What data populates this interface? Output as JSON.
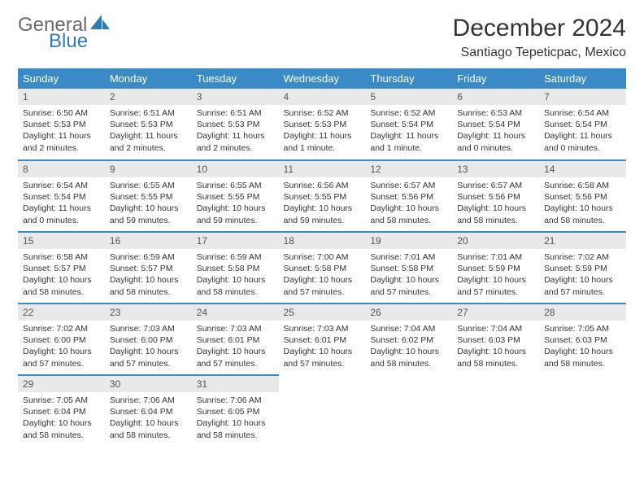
{
  "logo": {
    "word1": "General",
    "word2": "Blue",
    "shape_color": "#2f7ab8",
    "text_gray": "#6a6a6a"
  },
  "title": "December 2024",
  "subtitle": "Santiago Tepeticpac, Mexico",
  "colors": {
    "header_bg": "#3a8ac6",
    "header_text": "#ffffff",
    "daynum_bg": "#e9e9e9",
    "row_divider": "#3a8ac6",
    "body_text": "#333333"
  },
  "weekdays": [
    "Sunday",
    "Monday",
    "Tuesday",
    "Wednesday",
    "Thursday",
    "Friday",
    "Saturday"
  ],
  "days": [
    {
      "n": "1",
      "sunrise": "Sunrise: 6:50 AM",
      "sunset": "Sunset: 5:53 PM",
      "day1": "Daylight: 11 hours",
      "day2": "and 2 minutes."
    },
    {
      "n": "2",
      "sunrise": "Sunrise: 6:51 AM",
      "sunset": "Sunset: 5:53 PM",
      "day1": "Daylight: 11 hours",
      "day2": "and 2 minutes."
    },
    {
      "n": "3",
      "sunrise": "Sunrise: 6:51 AM",
      "sunset": "Sunset: 5:53 PM",
      "day1": "Daylight: 11 hours",
      "day2": "and 2 minutes."
    },
    {
      "n": "4",
      "sunrise": "Sunrise: 6:52 AM",
      "sunset": "Sunset: 5:53 PM",
      "day1": "Daylight: 11 hours",
      "day2": "and 1 minute."
    },
    {
      "n": "5",
      "sunrise": "Sunrise: 6:52 AM",
      "sunset": "Sunset: 5:54 PM",
      "day1": "Daylight: 11 hours",
      "day2": "and 1 minute."
    },
    {
      "n": "6",
      "sunrise": "Sunrise: 6:53 AM",
      "sunset": "Sunset: 5:54 PM",
      "day1": "Daylight: 11 hours",
      "day2": "and 0 minutes."
    },
    {
      "n": "7",
      "sunrise": "Sunrise: 6:54 AM",
      "sunset": "Sunset: 5:54 PM",
      "day1": "Daylight: 11 hours",
      "day2": "and 0 minutes."
    },
    {
      "n": "8",
      "sunrise": "Sunrise: 6:54 AM",
      "sunset": "Sunset: 5:54 PM",
      "day1": "Daylight: 11 hours",
      "day2": "and 0 minutes."
    },
    {
      "n": "9",
      "sunrise": "Sunrise: 6:55 AM",
      "sunset": "Sunset: 5:55 PM",
      "day1": "Daylight: 10 hours",
      "day2": "and 59 minutes."
    },
    {
      "n": "10",
      "sunrise": "Sunrise: 6:55 AM",
      "sunset": "Sunset: 5:55 PM",
      "day1": "Daylight: 10 hours",
      "day2": "and 59 minutes."
    },
    {
      "n": "11",
      "sunrise": "Sunrise: 6:56 AM",
      "sunset": "Sunset: 5:55 PM",
      "day1": "Daylight: 10 hours",
      "day2": "and 59 minutes."
    },
    {
      "n": "12",
      "sunrise": "Sunrise: 6:57 AM",
      "sunset": "Sunset: 5:56 PM",
      "day1": "Daylight: 10 hours",
      "day2": "and 58 minutes."
    },
    {
      "n": "13",
      "sunrise": "Sunrise: 6:57 AM",
      "sunset": "Sunset: 5:56 PM",
      "day1": "Daylight: 10 hours",
      "day2": "and 58 minutes."
    },
    {
      "n": "14",
      "sunrise": "Sunrise: 6:58 AM",
      "sunset": "Sunset: 5:56 PM",
      "day1": "Daylight: 10 hours",
      "day2": "and 58 minutes."
    },
    {
      "n": "15",
      "sunrise": "Sunrise: 6:58 AM",
      "sunset": "Sunset: 5:57 PM",
      "day1": "Daylight: 10 hours",
      "day2": "and 58 minutes."
    },
    {
      "n": "16",
      "sunrise": "Sunrise: 6:59 AM",
      "sunset": "Sunset: 5:57 PM",
      "day1": "Daylight: 10 hours",
      "day2": "and 58 minutes."
    },
    {
      "n": "17",
      "sunrise": "Sunrise: 6:59 AM",
      "sunset": "Sunset: 5:58 PM",
      "day1": "Daylight: 10 hours",
      "day2": "and 58 minutes."
    },
    {
      "n": "18",
      "sunrise": "Sunrise: 7:00 AM",
      "sunset": "Sunset: 5:58 PM",
      "day1": "Daylight: 10 hours",
      "day2": "and 57 minutes."
    },
    {
      "n": "19",
      "sunrise": "Sunrise: 7:01 AM",
      "sunset": "Sunset: 5:58 PM",
      "day1": "Daylight: 10 hours",
      "day2": "and 57 minutes."
    },
    {
      "n": "20",
      "sunrise": "Sunrise: 7:01 AM",
      "sunset": "Sunset: 5:59 PM",
      "day1": "Daylight: 10 hours",
      "day2": "and 57 minutes."
    },
    {
      "n": "21",
      "sunrise": "Sunrise: 7:02 AM",
      "sunset": "Sunset: 5:59 PM",
      "day1": "Daylight: 10 hours",
      "day2": "and 57 minutes."
    },
    {
      "n": "22",
      "sunrise": "Sunrise: 7:02 AM",
      "sunset": "Sunset: 6:00 PM",
      "day1": "Daylight: 10 hours",
      "day2": "and 57 minutes."
    },
    {
      "n": "23",
      "sunrise": "Sunrise: 7:03 AM",
      "sunset": "Sunset: 6:00 PM",
      "day1": "Daylight: 10 hours",
      "day2": "and 57 minutes."
    },
    {
      "n": "24",
      "sunrise": "Sunrise: 7:03 AM",
      "sunset": "Sunset: 6:01 PM",
      "day1": "Daylight: 10 hours",
      "day2": "and 57 minutes."
    },
    {
      "n": "25",
      "sunrise": "Sunrise: 7:03 AM",
      "sunset": "Sunset: 6:01 PM",
      "day1": "Daylight: 10 hours",
      "day2": "and 57 minutes."
    },
    {
      "n": "26",
      "sunrise": "Sunrise: 7:04 AM",
      "sunset": "Sunset: 6:02 PM",
      "day1": "Daylight: 10 hours",
      "day2": "and 58 minutes."
    },
    {
      "n": "27",
      "sunrise": "Sunrise: 7:04 AM",
      "sunset": "Sunset: 6:03 PM",
      "day1": "Daylight: 10 hours",
      "day2": "and 58 minutes."
    },
    {
      "n": "28",
      "sunrise": "Sunrise: 7:05 AM",
      "sunset": "Sunset: 6:03 PM",
      "day1": "Daylight: 10 hours",
      "day2": "and 58 minutes."
    },
    {
      "n": "29",
      "sunrise": "Sunrise: 7:05 AM",
      "sunset": "Sunset: 6:04 PM",
      "day1": "Daylight: 10 hours",
      "day2": "and 58 minutes."
    },
    {
      "n": "30",
      "sunrise": "Sunrise: 7:06 AM",
      "sunset": "Sunset: 6:04 PM",
      "day1": "Daylight: 10 hours",
      "day2": "and 58 minutes."
    },
    {
      "n": "31",
      "sunrise": "Sunrise: 7:06 AM",
      "sunset": "Sunset: 6:05 PM",
      "day1": "Daylight: 10 hours",
      "day2": "and 58 minutes."
    }
  ]
}
